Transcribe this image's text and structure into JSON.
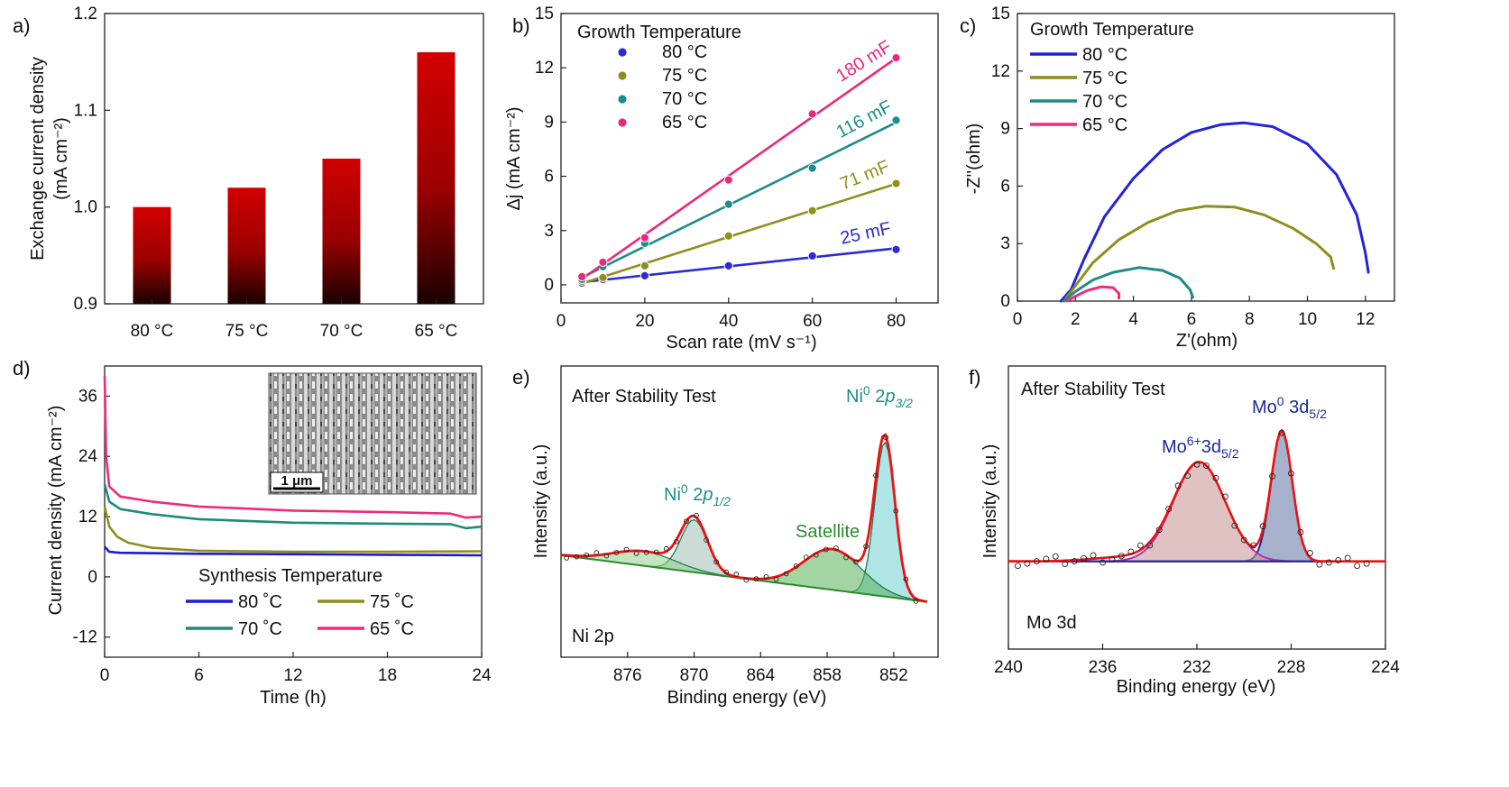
{
  "chart_data": [
    {
      "id": "a",
      "panel_label": "a)",
      "type": "bar",
      "ylabel": "Exchange current density",
      "ylabel_unit": "(mA cm⁻²)",
      "categories": [
        "80 °C",
        "75 °C",
        "70 °C",
        "65 °C"
      ],
      "values": [
        1.0,
        1.02,
        1.05,
        1.16
      ],
      "ylim": [
        0.9,
        1.2
      ],
      "yticks": [
        "0.9",
        "1.0",
        "1.1",
        "1.2"
      ],
      "bar_color_top": "#d20000",
      "bar_color_bottom": "#1a0000"
    },
    {
      "id": "b",
      "panel_label": "b)",
      "type": "scatter",
      "xlabel": "Scan rate (mV s⁻¹)",
      "ylabel": "Δj (mA cm⁻²)",
      "xlim": [
        0,
        90
      ],
      "ylim": [
        -1,
        15
      ],
      "xticks": [
        "0",
        "20",
        "40",
        "60",
        "80"
      ],
      "yticks": [
        "0",
        "3",
        "6",
        "9",
        "12",
        "15"
      ],
      "legend_title": "Growth Temperature",
      "legend_position": "top-left",
      "x": [
        5,
        10,
        20,
        40,
        60,
        80
      ],
      "series": [
        {
          "name": "80 °C",
          "color": "#2a2ad6",
          "values": [
            0.1,
            0.3,
            0.5,
            1.05,
            1.6,
            1.95
          ],
          "fit_label": "25 mF"
        },
        {
          "name": "75 °C",
          "color": "#8f8f1e",
          "values": [
            0.2,
            0.4,
            1.05,
            2.7,
            4.1,
            5.6
          ],
          "fit_label": "71 mF"
        },
        {
          "name": "70 °C",
          "color": "#1c8c8c",
          "values": [
            0.3,
            1.0,
            2.3,
            4.45,
            6.45,
            9.1
          ],
          "fit_label": "116 mF"
        },
        {
          "name": "65 °C",
          "color": "#e8287a",
          "values": [
            0.45,
            1.25,
            2.6,
            5.8,
            9.45,
            12.55
          ],
          "fit_label": "180 mF"
        }
      ]
    },
    {
      "id": "c",
      "panel_label": "c)",
      "type": "line",
      "xlabel": "Z'(ohm)",
      "ylabel": "-Z''(ohm)",
      "xlim": [
        0,
        13
      ],
      "ylim": [
        0,
        15
      ],
      "xticks": [
        "0",
        "2",
        "4",
        "6",
        "8",
        "10",
        "12"
      ],
      "yticks": [
        "0",
        "3",
        "6",
        "9",
        "12",
        "15"
      ],
      "legend_title": "Growth Temperature",
      "legend_position": "top-left",
      "series": [
        {
          "name": "80 °C",
          "color": "#2222dd",
          "points": [
            [
              1.5,
              0
            ],
            [
              1.85,
              0.6
            ],
            [
              2.3,
              2.2
            ],
            [
              3.0,
              4.4
            ],
            [
              4.0,
              6.4
            ],
            [
              5.0,
              7.9
            ],
            [
              6.0,
              8.8
            ],
            [
              7.0,
              9.2
            ],
            [
              7.8,
              9.3
            ],
            [
              8.8,
              9.1
            ],
            [
              10.0,
              8.2
            ],
            [
              11.0,
              6.6
            ],
            [
              11.7,
              4.5
            ],
            [
              12.0,
              2.5
            ],
            [
              12.1,
              1.5
            ]
          ]
        },
        {
          "name": "75 °C",
          "color": "#8e8e1c",
          "points": [
            [
              1.6,
              0
            ],
            [
              2.0,
              0.8
            ],
            [
              2.6,
              2.0
            ],
            [
              3.5,
              3.2
            ],
            [
              4.5,
              4.1
            ],
            [
              5.5,
              4.7
            ],
            [
              6.5,
              4.95
            ],
            [
              7.5,
              4.9
            ],
            [
              8.5,
              4.5
            ],
            [
              9.5,
              3.8
            ],
            [
              10.3,
              3.0
            ],
            [
              10.8,
              2.3
            ],
            [
              10.9,
              1.7
            ]
          ]
        },
        {
          "name": "70 °C",
          "color": "#1e8a8a",
          "points": [
            [
              1.6,
              0
            ],
            [
              2.0,
              0.5
            ],
            [
              2.6,
              1.1
            ],
            [
              3.3,
              1.5
            ],
            [
              4.2,
              1.75
            ],
            [
              5.0,
              1.6
            ],
            [
              5.6,
              1.2
            ],
            [
              5.95,
              0.6
            ],
            [
              6.05,
              0.2
            ]
          ]
        },
        {
          "name": "65 °C",
          "color": "#ee2a7b",
          "points": [
            [
              1.7,
              0
            ],
            [
              2.0,
              0.25
            ],
            [
              2.4,
              0.55
            ],
            [
              2.9,
              0.75
            ],
            [
              3.3,
              0.7
            ],
            [
              3.5,
              0.4
            ],
            [
              3.5,
              0.15
            ]
          ]
        }
      ]
    },
    {
      "id": "d",
      "panel_label": "d)",
      "type": "line",
      "xlabel": "Time (h)",
      "ylabel": "Current density (mA cm⁻²)",
      "xlim": [
        0,
        24
      ],
      "ylim": [
        -16,
        42
      ],
      "xticks": [
        "0",
        "6",
        "12",
        "18",
        "24"
      ],
      "yticks": [
        "-12",
        "0",
        "12",
        "24",
        "36"
      ],
      "legend_title": "Synthesis Temperature",
      "legend_position": "bottom-center",
      "inset_scale_label": "1 μm",
      "series": [
        {
          "name": "80 ˚C",
          "color": "#1a1ad8",
          "points": [
            [
              0,
              6
            ],
            [
              0.3,
              5.0
            ],
            [
              1,
              4.8
            ],
            [
              6,
              4.6
            ],
            [
              12,
              4.5
            ],
            [
              18,
              4.4
            ],
            [
              24,
              4.3
            ]
          ]
        },
        {
          "name": "75 ˚C",
          "color": "#8e8e1c",
          "points": [
            [
              0,
              14
            ],
            [
              0.3,
              10
            ],
            [
              0.8,
              8
            ],
            [
              1.5,
              6.8
            ],
            [
              3,
              5.8
            ],
            [
              6,
              5.2
            ],
            [
              12,
              5.0
            ],
            [
              18,
              5.0
            ],
            [
              24,
              5.1
            ]
          ]
        },
        {
          "name": "70 ˚C",
          "color": "#1e8a7c",
          "points": [
            [
              0,
              18.5
            ],
            [
              0.3,
              15
            ],
            [
              1,
              13.5
            ],
            [
              3,
              12.5
            ],
            [
              6,
              11.5
            ],
            [
              12,
              10.8
            ],
            [
              18,
              10.6
            ],
            [
              22,
              10.5
            ],
            [
              23,
              9.7
            ],
            [
              24,
              10.0
            ]
          ]
        },
        {
          "name": "65 ˚C",
          "color": "#ee2a7b",
          "points": [
            [
              0,
              40
            ],
            [
              0.1,
              24
            ],
            [
              0.3,
              18
            ],
            [
              1,
              16
            ],
            [
              3,
              15
            ],
            [
              6,
              14
            ],
            [
              12,
              13.2
            ],
            [
              18,
              12.9
            ],
            [
              22,
              12.6
            ],
            [
              23,
              11.8
            ],
            [
              24,
              12.0
            ]
          ]
        }
      ]
    },
    {
      "id": "e",
      "panel_label": "e)",
      "type": "line",
      "xlabel": "Binding energy (eV)",
      "ylabel": "Intensity (a.u.)",
      "xlim": [
        882,
        848
      ],
      "ylim": [
        0,
        1
      ],
      "xticks": [
        "876",
        "870",
        "864",
        "858",
        "852"
      ],
      "annotations": [
        "After Stability Test",
        "Ni 2p",
        "Satellite"
      ],
      "peak_labels": [
        {
          "base": "Ni",
          "sup": "0",
          "rest": " 2",
          "italic": "p",
          "sub": "3/2"
        },
        {
          "base": "Ni",
          "sup": "0",
          "rest": " 2",
          "italic": "p",
          "sub": "1/2"
        }
      ],
      "peaks": [
        {
          "center": 852.8,
          "fill": "#6fcfcf"
        },
        {
          "center": 870.0,
          "fill": "#9fbfb2"
        },
        {
          "center": 857.5,
          "fill": "#58b05a"
        },
        {
          "center": 874.5,
          "fill": "#8fcf8f"
        }
      ],
      "envelope_color": "#ee1111",
      "data_color": "#222222",
      "background_color": "#2e8b2e"
    },
    {
      "id": "f",
      "panel_label": "f)",
      "type": "line",
      "xlabel": "Binding energy (eV)",
      "ylabel": "Intensity (a.u.)",
      "xlim": [
        240,
        224
      ],
      "ylim": [
        0,
        1
      ],
      "xticks": [
        "240",
        "236",
        "232",
        "228",
        "224"
      ],
      "annotations": [
        "After Stability Test",
        "Mo 3d"
      ],
      "peak_labels": [
        {
          "base": "Mo",
          "sup": "0",
          "rest": " 3d",
          "sub": "5/2"
        },
        {
          "base": "Mo",
          "sup": "6+",
          "rest": "3d",
          "sub": "5/2"
        }
      ],
      "peaks": [
        {
          "center": 228.4,
          "fill": "#6a7fa8"
        },
        {
          "center": 231.9,
          "fill": "#cc9a9a"
        }
      ],
      "envelope_color": "#ee1111",
      "data_color": "#222222",
      "fit_color_mo0": "#1a2a9a",
      "fit_color_mo6": "#b030b0"
    }
  ]
}
